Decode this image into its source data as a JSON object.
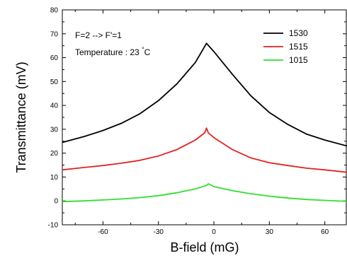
{
  "chart_data": {
    "type": "line",
    "xlabel": "B-field (mG)",
    "ylabel": "Transmittance (mV)",
    "xlim": [
      -82,
      72
    ],
    "ylim": [
      -10,
      80
    ],
    "xticks": [
      -60,
      -30,
      0,
      30,
      60
    ],
    "yticks": [
      -10,
      0,
      10,
      20,
      30,
      40,
      50,
      60,
      70,
      80
    ],
    "annotations": [
      "F=2 --> F'=1",
      "Temperature : 23 °C"
    ],
    "legend_position": "top-right",
    "series": [
      {
        "name": "1530",
        "color": "#000000",
        "x": [
          -82,
          -70,
          -60,
          -50,
          -40,
          -30,
          -20,
          -10,
          -4,
          0,
          10,
          20,
          30,
          40,
          50,
          60,
          72
        ],
        "y": [
          24.5,
          27,
          29.5,
          32.5,
          36.5,
          42,
          49,
          58,
          66,
          62.5,
          53,
          44,
          37,
          32,
          28,
          25.5,
          23
        ]
      },
      {
        "name": "1515",
        "color": "#e32222",
        "x": [
          -82,
          -70,
          -60,
          -50,
          -40,
          -30,
          -20,
          -10,
          -5,
          -4,
          -3,
          0,
          10,
          20,
          30,
          40,
          50,
          60,
          72
        ],
        "y": [
          13,
          14,
          14.8,
          15.8,
          17,
          18.8,
          21.5,
          25.5,
          28.5,
          30.5,
          28.5,
          26.5,
          21.5,
          18,
          16,
          14.8,
          13.7,
          13,
          12
        ]
      },
      {
        "name": "1015",
        "color": "#2ee02e",
        "x": [
          -82,
          -70,
          -60,
          -50,
          -40,
          -30,
          -20,
          -10,
          -4,
          -3,
          0,
          10,
          20,
          30,
          40,
          50,
          60,
          72
        ],
        "y": [
          -0.3,
          0,
          0.4,
          0.8,
          1.4,
          2.2,
          3.4,
          5,
          6.5,
          7.2,
          6,
          4.3,
          3,
          2,
          1.2,
          0.6,
          0.2,
          -0.2
        ]
      }
    ]
  }
}
